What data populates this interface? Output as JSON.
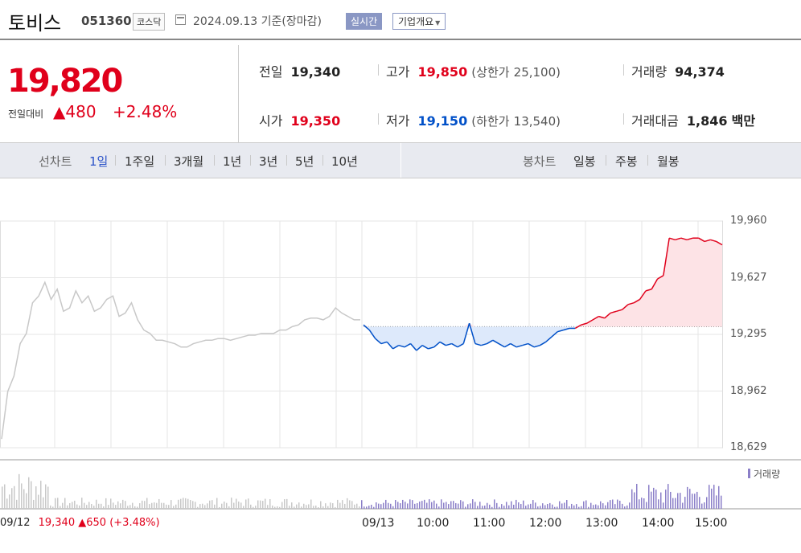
{
  "header": {
    "name": "토비스",
    "code": "051360",
    "market": "코스닥",
    "date": "2024.09.13 기준(장마감)",
    "realtime_btn": "실시간",
    "company_btn": "기업개요"
  },
  "quote": {
    "price": "19,820",
    "change_label": "전일대비",
    "change_value": "▲480",
    "change_pct": "+2.48%",
    "prev_label": "전일",
    "prev_value": "19,340",
    "high_label": "고가",
    "high_value": "19,850",
    "upper_label": "(상한가",
    "upper_value": "25,100)",
    "volume_label": "거래량",
    "volume_value": "94,374",
    "open_label": "시가",
    "open_value": "19,350",
    "low_label": "저가",
    "low_value": "19,150",
    "lower_label": "(하한가",
    "lower_value": "13,540)",
    "amount_label": "거래대금",
    "amount_value": "1,846",
    "amount_unit": "백만"
  },
  "period": {
    "line_label": "선차트",
    "line_items": [
      "1일",
      "1주일",
      "3개월",
      "1년",
      "3년",
      "5년",
      "10년"
    ],
    "active": "1일",
    "candle_label": "봉차트",
    "candle_items": [
      "일봉",
      "주봉",
      "월봉"
    ]
  },
  "colors": {
    "up": "#e0001b",
    "down": "#0050c8",
    "volume": "#8b7fc8"
  },
  "chart_data": {
    "type": "line",
    "y_ticks": [
      "19,960",
      "19,627",
      "19,295",
      "18,962",
      "18,629"
    ],
    "ylim": [
      18629,
      19960
    ],
    "baseline": 19340,
    "x_ticks": [
      "09/13",
      "10:00",
      "11:00",
      "12:00",
      "13:00",
      "14:00",
      "15:00"
    ],
    "volume_label": "거래량",
    "prev_day": {
      "date": "09/12",
      "close": "19,340",
      "change": "▲650",
      "pct": "(+3.48%)"
    },
    "series": [
      {
        "values_prev_day": [
          18680,
          18960,
          19050,
          19240,
          19300,
          19480,
          19520,
          19600,
          19500,
          19560,
          19430,
          19450,
          19550,
          19480,
          19520,
          19430,
          19450,
          19500,
          19520,
          19400,
          19420,
          19480,
          19380,
          19320,
          19300,
          19260,
          19260,
          19250,
          19240,
          19220,
          19220,
          19240,
          19250,
          19260,
          19260,
          19270,
          19270,
          19260,
          19270,
          19280,
          19290,
          19290,
          19300,
          19300,
          19300,
          19320,
          19320,
          19340,
          19350,
          19380,
          19390,
          19390,
          19380,
          19400,
          19450,
          19420,
          19400,
          19380,
          19380
        ]
      },
      {
        "values_today": [
          19350,
          19320,
          19270,
          19240,
          19250,
          19210,
          19230,
          19220,
          19240,
          19200,
          19230,
          19210,
          19220,
          19250,
          19230,
          19240,
          19220,
          19240,
          19360,
          19240,
          19230,
          19240,
          19260,
          19240,
          19220,
          19240,
          19220,
          19230,
          19240,
          19220,
          19230,
          19250,
          19280,
          19310,
          19320,
          19330,
          19330,
          19350,
          19360,
          19380,
          19400,
          19390,
          19420,
          19430,
          19440,
          19470,
          19480,
          19500,
          19550,
          19560,
          19620,
          19640,
          19860,
          19850,
          19860,
          19850,
          19860,
          19860,
          19840,
          19850,
          19840,
          19820
        ]
      }
    ]
  }
}
